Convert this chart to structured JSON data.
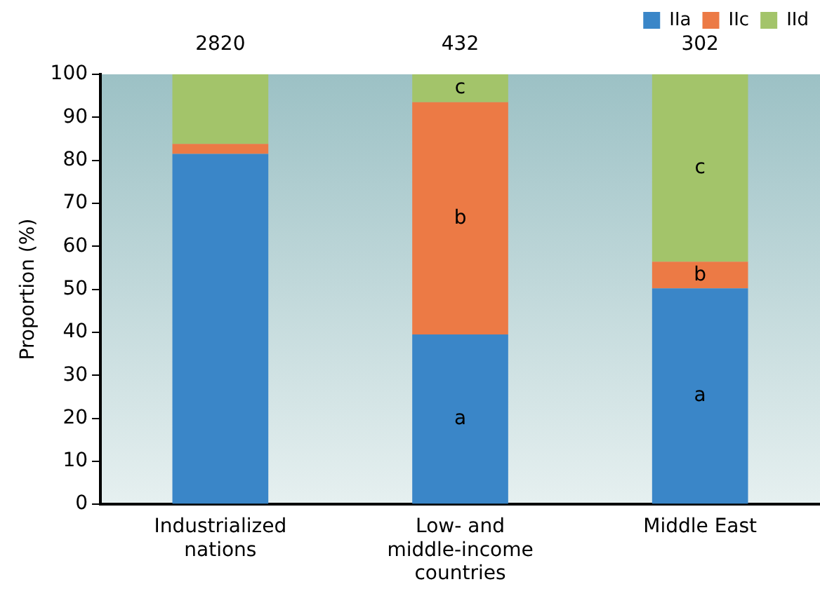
{
  "chart_data": {
    "type": "bar",
    "stacked": true,
    "ylabel": "Proportion (%)",
    "categories": [
      "Industrialized nations",
      "Low- and middle-income countries",
      "Middle East"
    ],
    "series": [
      {
        "name": "IIa",
        "color": "#3a86c8",
        "values": [
          81.5,
          39.5,
          50.2
        ],
        "value_labels": [
          null,
          "a",
          "a"
        ]
      },
      {
        "name": "IIc",
        "color": "#ec7a45",
        "values": [
          2.3,
          54,
          6.2
        ],
        "value_labels": [
          null,
          "b",
          "b"
        ]
      },
      {
        "name": "IId",
        "color": "#a3c46a",
        "values": [
          16.2,
          6.5,
          43.6
        ],
        "value_labels": [
          null,
          "c",
          "c"
        ]
      }
    ],
    "ylim": [
      0,
      100
    ],
    "yticks": [
      0,
      10,
      20,
      30,
      40,
      50,
      60,
      70,
      80,
      90,
      100
    ],
    "grid": false,
    "legend": "top right",
    "annotations": [
      {
        "text": "2820",
        "x": "Industrialized nations",
        "y": 100
      },
      {
        "text": "432",
        "x": "Low- and middle-income countries",
        "y": 100
      },
      {
        "text": "302",
        "x": "Middle East",
        "y": 100
      }
    ]
  }
}
